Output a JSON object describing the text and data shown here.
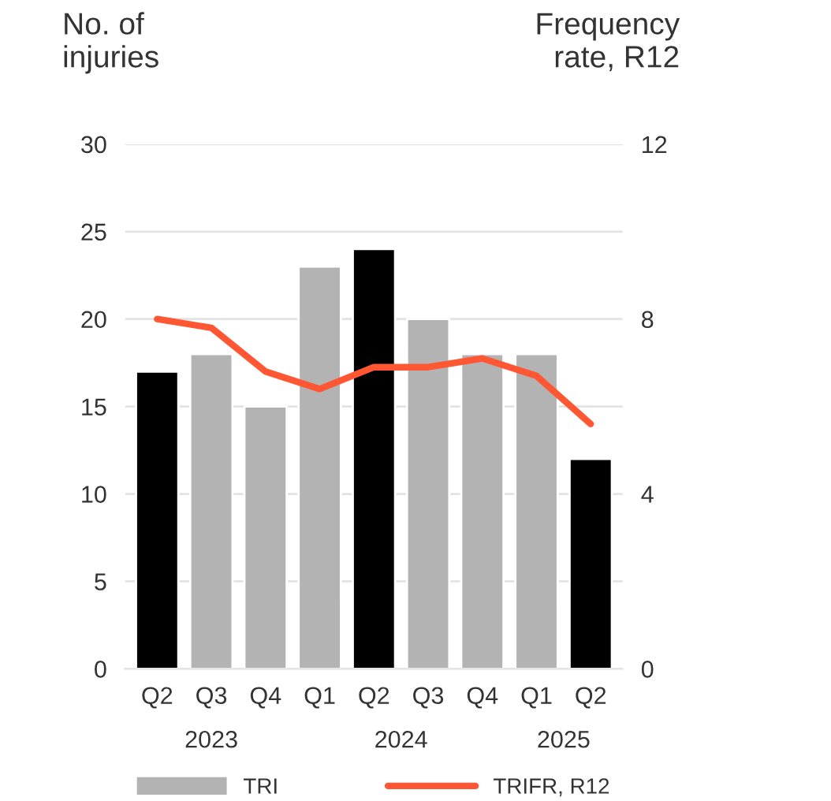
{
  "chart_data": {
    "type": "bar",
    "ylabel": "No. of injuries",
    "y2label": "Frequency rate, R12",
    "categories": [
      "Q2",
      "Q3",
      "Q4",
      "Q1",
      "Q2",
      "Q3",
      "Q4",
      "Q1",
      "Q2"
    ],
    "series": [
      {
        "name": "TRI",
        "color": "#b3b3b3",
        "colors": [
          "#000000",
          "#b3b3b3",
          "#b3b3b3",
          "#b3b3b3",
          "#000000",
          "#b3b3b3",
          "#b3b3b3",
          "#b3b3b3",
          "#000000"
        ],
        "values": [
          17,
          18,
          15,
          23,
          24,
          20,
          18,
          18,
          12
        ]
      },
      {
        "name": "TRIFR, R12",
        "type": "line",
        "axis": "y2",
        "color": "#ff5733",
        "values": [
          8.0,
          7.8,
          6.8,
          6.4,
          6.9,
          6.9,
          7.1,
          6.7,
          5.6
        ]
      }
    ],
    "annotations": [
      "2023",
      "2024",
      "2025"
    ],
    "ylim": [
      0,
      30
    ],
    "yticks": [
      0,
      5,
      10,
      15,
      20,
      25,
      30
    ],
    "y2lim": [
      0,
      12
    ],
    "y2ticks": [
      0,
      4,
      8,
      12
    ],
    "grid": "y",
    "legend": "bottom",
    "marker": "none",
    "line_style": "solid"
  }
}
